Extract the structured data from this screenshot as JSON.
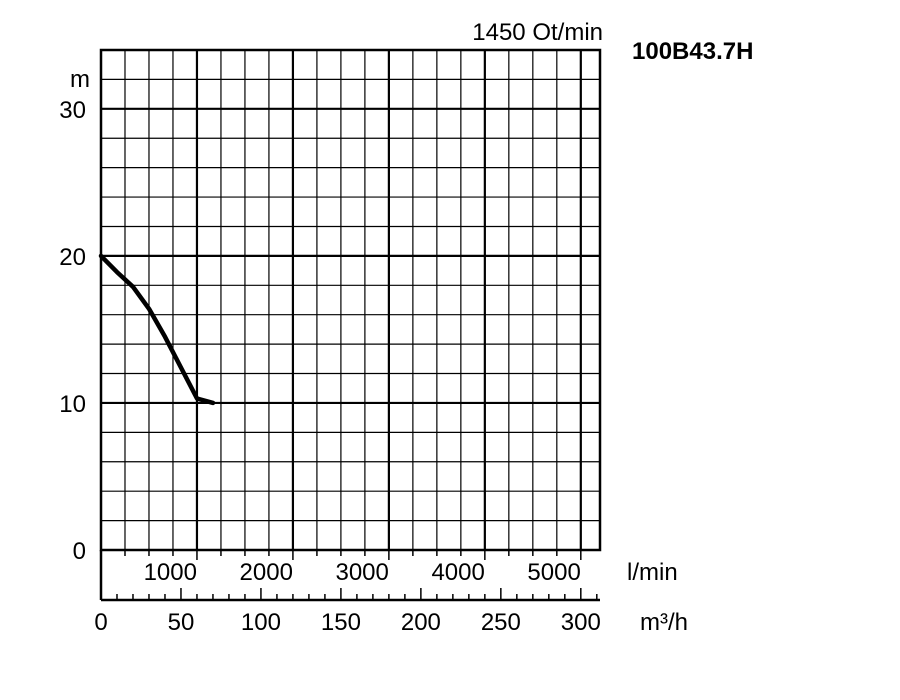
{
  "chart_data": {
    "type": "line",
    "speed_label": "1450 Ot/min",
    "model": "100B43.7H",
    "ylabel": "m",
    "ylim": [
      0,
      34
    ],
    "yticks": [
      "0",
      "10",
      "20",
      "30"
    ],
    "x_lmin": {
      "unit": "l/min",
      "range": [
        0,
        5200
      ],
      "ticks": [
        "1000",
        "2000",
        "3000",
        "4000",
        "5000"
      ]
    },
    "x_m3h": {
      "unit": "m³/h",
      "range": [
        0,
        312
      ],
      "ticks": [
        "0",
        "50",
        "100",
        "150",
        "200",
        "250",
        "300"
      ]
    },
    "series": [
      {
        "x": [
          0,
          10,
          20,
          30,
          40,
          50,
          60,
          70
        ],
        "y": [
          20,
          18.9,
          17.9,
          16.4,
          14.5,
          12.4,
          10.3,
          10.0
        ]
      }
    ]
  }
}
